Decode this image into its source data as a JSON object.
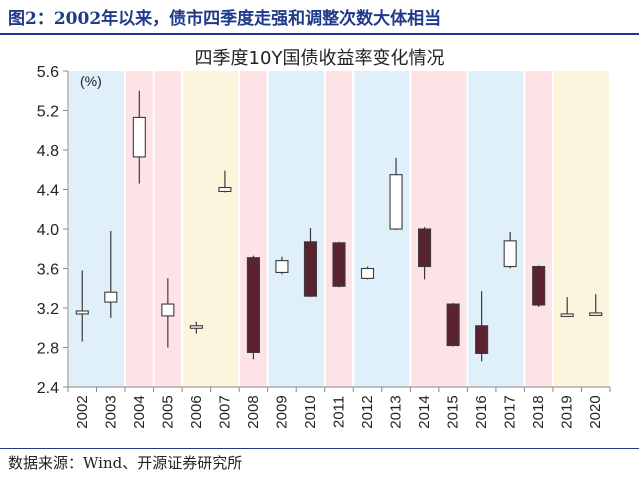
{
  "figure": {
    "title": "图2：2002年以来，债市四季度走强和调整次数大体相当",
    "source": "数据来源：Wind、开源证券研究所"
  },
  "chart_data": {
    "type": "candlestick",
    "title": "四季度10Y国债收益率变化情况",
    "unit_label": "(%)",
    "ylim": [
      2.4,
      5.6
    ],
    "yticks": [
      "2.4",
      "2.8",
      "3.2",
      "3.6",
      "4.0",
      "4.4",
      "4.8",
      "5.2",
      "5.6"
    ],
    "categories": [
      "2002",
      "2003",
      "2004",
      "2005",
      "2006",
      "2007",
      "2008",
      "2009",
      "2010",
      "2011",
      "2012",
      "2013",
      "2014",
      "2015",
      "2016",
      "2017",
      "2018",
      "2019",
      "2020"
    ],
    "open": [
      3.14,
      3.26,
      4.73,
      3.12,
      3.0,
      4.38,
      3.71,
      3.56,
      3.87,
      3.86,
      3.5,
      4.0,
      4.0,
      3.24,
      3.02,
      3.62,
      3.62,
      3.13,
      3.14
    ],
    "close": [
      3.17,
      3.36,
      5.13,
      3.24,
      3.02,
      4.42,
      2.75,
      3.68,
      3.32,
      3.42,
      3.6,
      4.55,
      3.62,
      2.82,
      2.74,
      3.88,
      3.23,
      3.14,
      3.15
    ],
    "high": [
      3.58,
      3.98,
      5.4,
      3.5,
      3.06,
      4.59,
      3.73,
      3.72,
      4.01,
      3.87,
      3.62,
      4.72,
      4.02,
      3.25,
      3.37,
      3.97,
      3.63,
      3.31,
      3.34
    ],
    "low": [
      2.86,
      3.1,
      4.46,
      2.8,
      2.94,
      4.37,
      2.68,
      3.54,
      3.31,
      3.41,
      3.49,
      3.99,
      3.49,
      2.81,
      2.66,
      3.6,
      3.21,
      3.12,
      3.13
    ],
    "bands": [
      {
        "from": "2002",
        "to": "2003",
        "color": "#dff0fb"
      },
      {
        "from": "2004",
        "to": "2004",
        "color": "#fde3e6"
      },
      {
        "from": "2005",
        "to": "2005",
        "color": "#fde3e6"
      },
      {
        "from": "2006",
        "to": "2007",
        "color": "#fdf4dd"
      },
      {
        "from": "2008",
        "to": "2008",
        "color": "#fde3e6"
      },
      {
        "from": "2009",
        "to": "2010",
        "color": "#dff0fb"
      },
      {
        "from": "2011",
        "to": "2011",
        "color": "#fde3e6"
      },
      {
        "from": "2012",
        "to": "2013",
        "color": "#dff0fb"
      },
      {
        "from": "2014",
        "to": "2015",
        "color": "#fde3e6"
      },
      {
        "from": "2016",
        "to": "2017",
        "color": "#dff0fb"
      },
      {
        "from": "2018",
        "to": "2018",
        "color": "#fde3e6"
      },
      {
        "from": "2019",
        "to": "2020",
        "color": "#fdf4dd"
      }
    ],
    "colors": {
      "down": "#5b2230",
      "up": "#ffffff",
      "stroke": "#3b3b3b",
      "axis": "#888888"
    },
    "grid": false
  }
}
